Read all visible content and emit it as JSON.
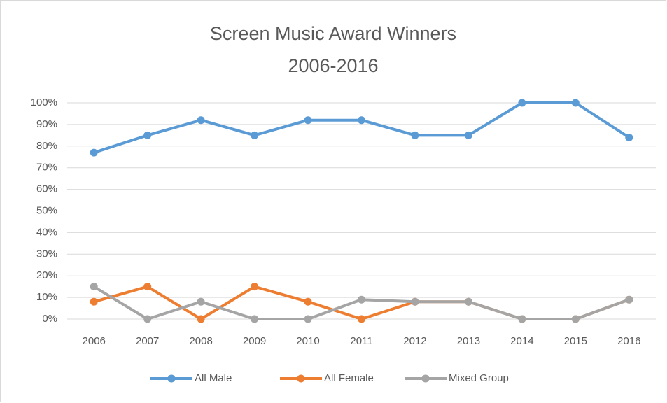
{
  "chart_data": {
    "type": "line",
    "title": "Screen Music Award Winners",
    "subtitle": "2006-2016",
    "categories": [
      "2006",
      "2007",
      "2008",
      "2009",
      "2010",
      "2011",
      "2012",
      "2013",
      "2014",
      "2015",
      "2016"
    ],
    "series": [
      {
        "name": "All Male",
        "color": "#5b9bd5",
        "values": [
          77,
          85,
          92,
          85,
          92,
          92,
          85,
          85,
          100,
          100,
          84
        ]
      },
      {
        "name": "All Female",
        "color": "#ed7d31",
        "values": [
          8,
          15,
          0,
          15,
          8,
          0,
          8,
          8,
          0,
          0,
          9
        ]
      },
      {
        "name": "Mixed Group",
        "color": "#a5a5a5",
        "values": [
          15,
          0,
          8,
          0,
          0,
          9,
          8,
          8,
          0,
          0,
          9
        ]
      }
    ],
    "ylim": [
      0,
      100
    ],
    "yticks": [
      {
        "value": 0,
        "label": "0%"
      },
      {
        "value": 10,
        "label": "10%"
      },
      {
        "value": 20,
        "label": "20%"
      },
      {
        "value": 30,
        "label": "30%"
      },
      {
        "value": 40,
        "label": "40%"
      },
      {
        "value": 50,
        "label": "50%"
      },
      {
        "value": 60,
        "label": "60%"
      },
      {
        "value": 70,
        "label": "70%"
      },
      {
        "value": 80,
        "label": "80%"
      },
      {
        "value": 90,
        "label": "90%"
      },
      {
        "value": 100,
        "label": "100%"
      }
    ],
    "grid": true,
    "legend": "bottom"
  }
}
